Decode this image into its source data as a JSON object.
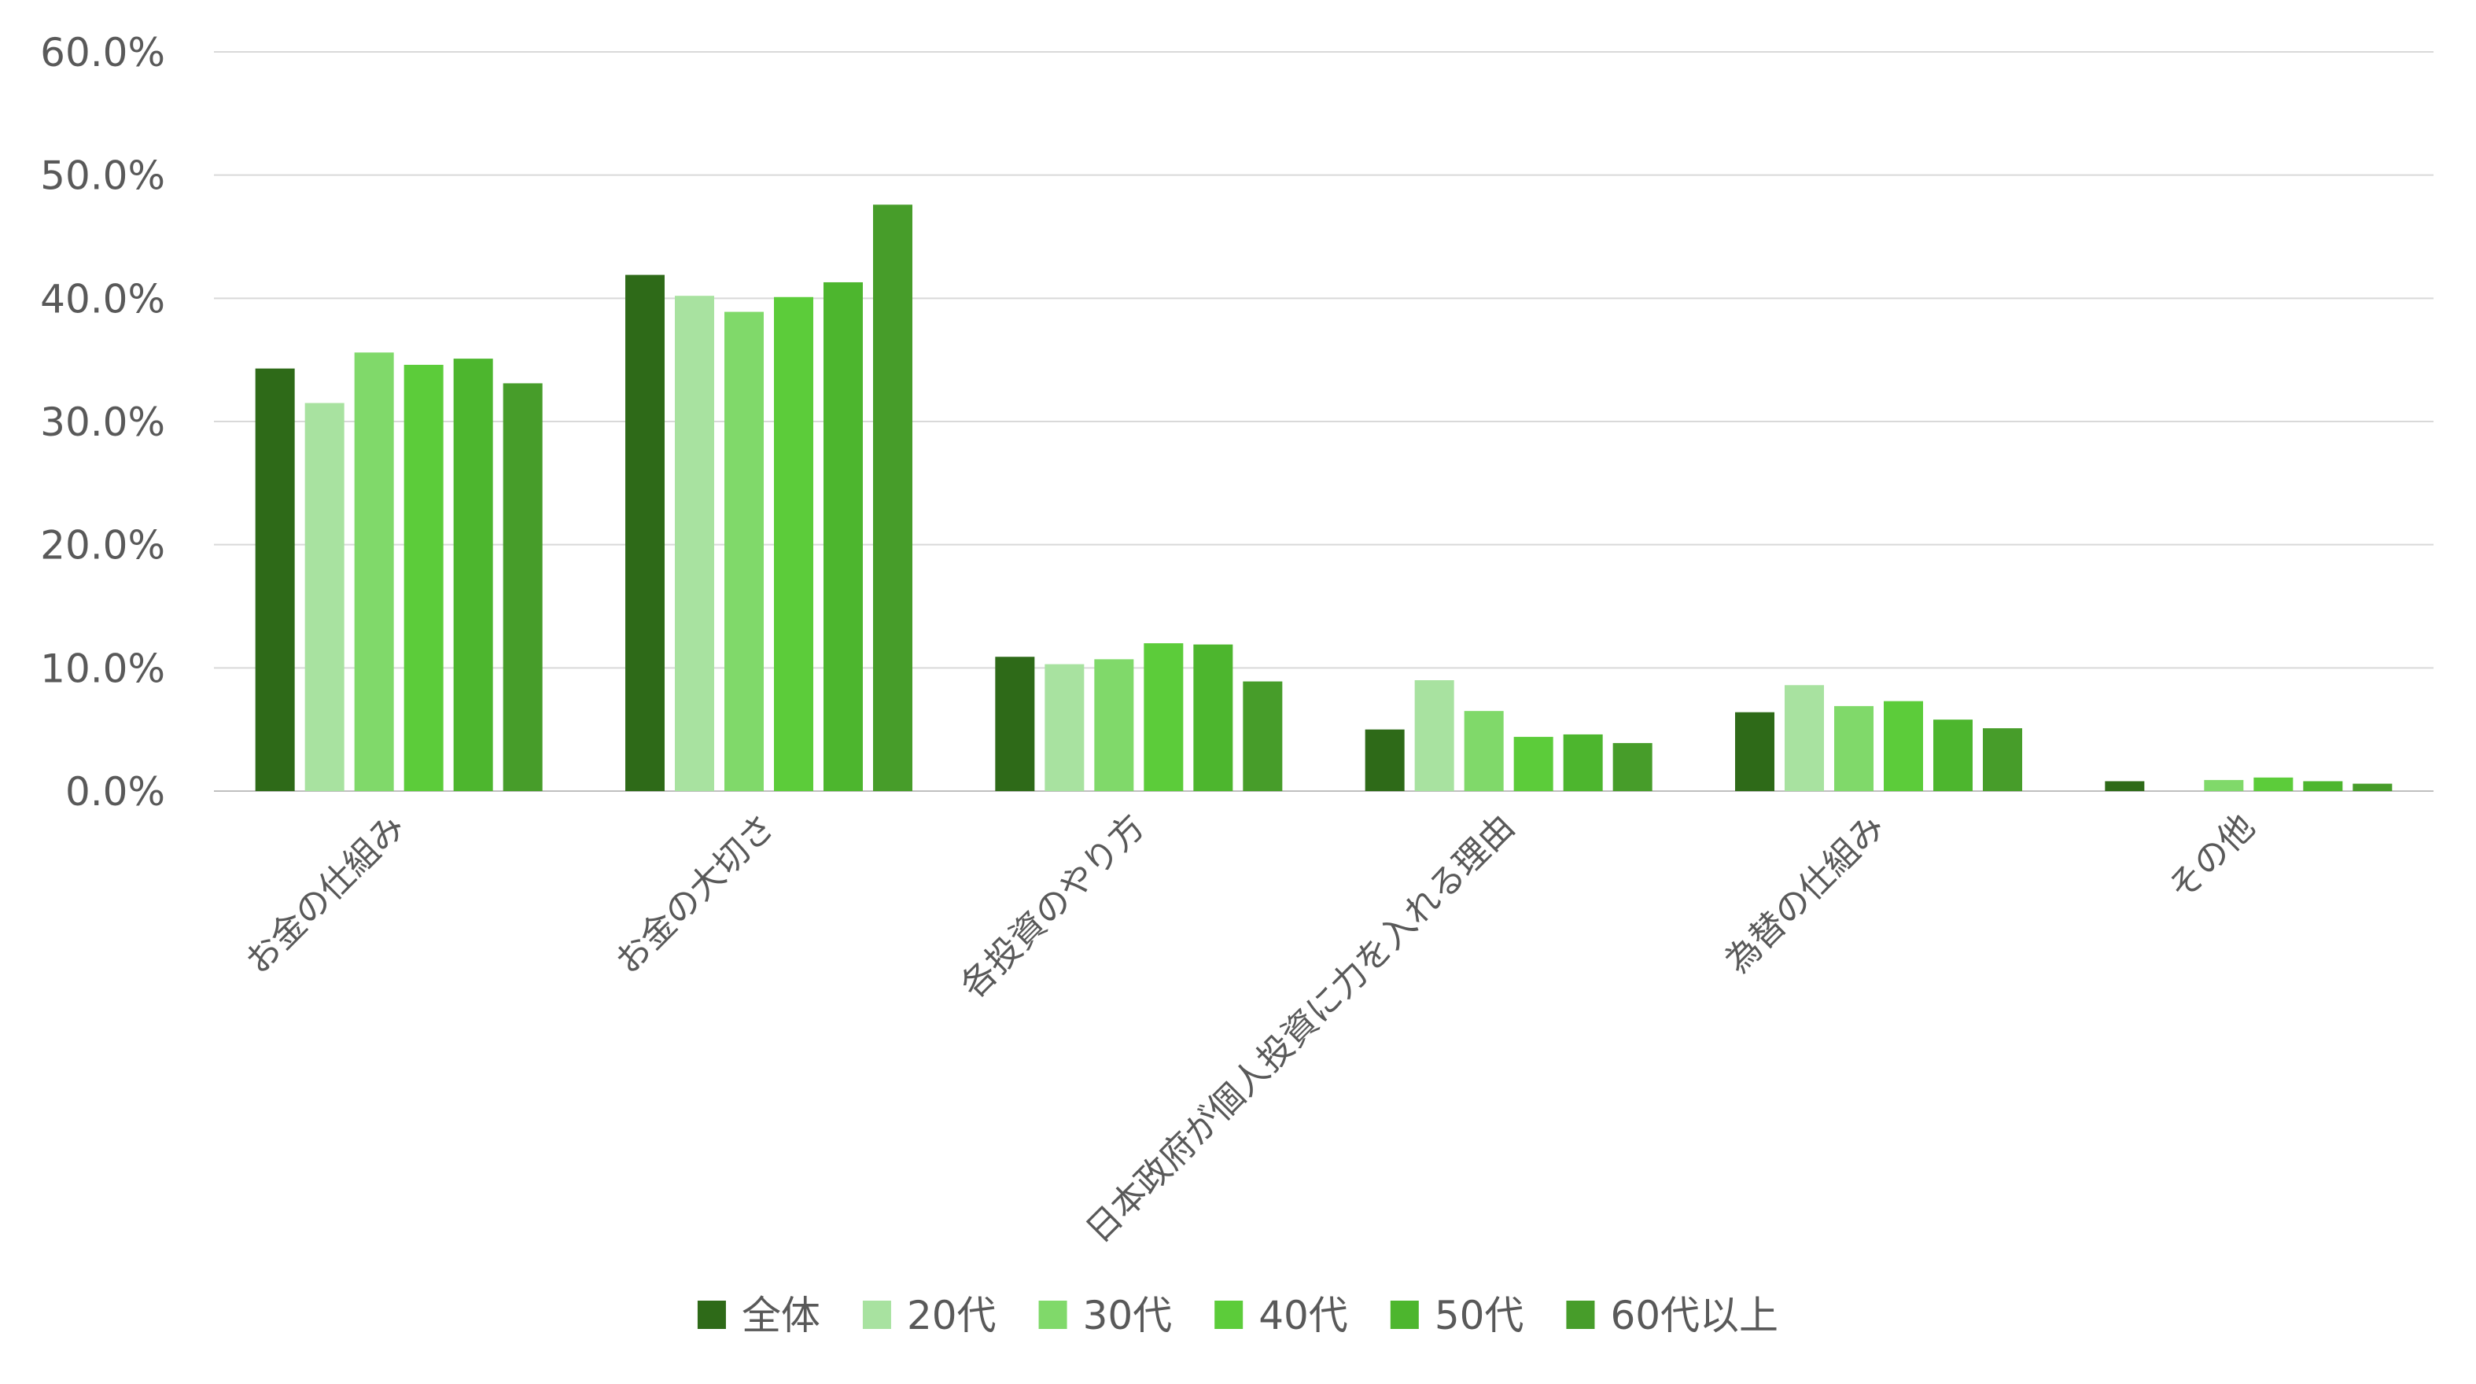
{
  "chart_data": {
    "type": "bar",
    "categories": [
      "お金の仕組み",
      "お金の大切さ",
      "各投資のやり方",
      "日本政府が個人投資に力を入れる理由",
      "為替の仕組み",
      "その他"
    ],
    "ylim": [
      0,
      60
    ],
    "yticks": [
      "0.0%",
      "10.0%",
      "20.0%",
      "30.0%",
      "40.0%",
      "50.0%",
      "60.0%"
    ],
    "ytick_values": [
      0,
      10,
      20,
      30,
      40,
      50,
      60
    ],
    "grid": true,
    "legend_position": "bottom",
    "series": [
      {
        "name": "全体",
        "color": "#2e6a18",
        "values": [
          34.3,
          41.9,
          10.9,
          5.0,
          6.4,
          0.8
        ]
      },
      {
        "name": "20代",
        "color": "#a8e2a0",
        "values": [
          31.5,
          40.2,
          10.3,
          9.0,
          8.6,
          0.0
        ]
      },
      {
        "name": "30代",
        "color": "#80d96a",
        "values": [
          35.6,
          38.9,
          10.7,
          6.5,
          6.9,
          0.9
        ]
      },
      {
        "name": "40代",
        "color": "#5ccc3a",
        "values": [
          34.6,
          40.1,
          12.0,
          4.4,
          7.3,
          1.1
        ]
      },
      {
        "name": "50代",
        "color": "#4db62e",
        "values": [
          35.1,
          41.3,
          11.9,
          4.6,
          5.8,
          0.8
        ]
      },
      {
        "name": "60代以上",
        "color": "#479d2a",
        "values": [
          33.1,
          47.6,
          8.9,
          3.9,
          5.1,
          0.6
        ]
      }
    ]
  }
}
